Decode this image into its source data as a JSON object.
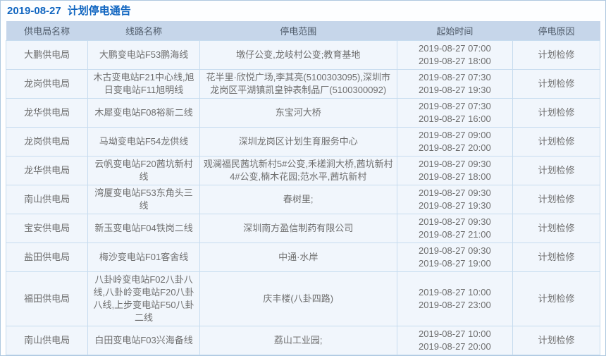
{
  "page": {
    "title_date": "2019-08-27",
    "title_text": "计划停电通告"
  },
  "colors": {
    "title": "#1065c0",
    "header_bg": "#c6d6ea",
    "row_bg": "#f1f6fc",
    "grid_border": "#c7dcef",
    "panel_border": "#aec8e0",
    "cell_text": "#6e6e6e"
  },
  "table": {
    "columns": [
      "供电局名称",
      "线路名称",
      "停电范围",
      "起始时间",
      "停电原因"
    ],
    "rows": [
      {
        "bureau": "大鹏供电局",
        "line": "大鹏变电站F53鹏海线",
        "scope": "墩仔公变,龙岐村公变;教育基地",
        "start": "2019-08-27 07:00",
        "end": "2019-08-27 18:00",
        "reason": "计划检修"
      },
      {
        "bureau": "龙岗供电局",
        "line": "木古变电站F21中心线,旭日变电站F11旭明线",
        "scope": "花半里·欣悦广场,李其亮(5100303095),深圳市龙岗区平湖镇凯皇钟表制品厂(5100300092)",
        "start": "2019-08-27 07:30",
        "end": "2019-08-27 19:30",
        "reason": "计划检修"
      },
      {
        "bureau": "龙华供电局",
        "line": "木犀变电站F08裕新二线",
        "scope": "东宝河大桥",
        "start": "2019-08-27 07:30",
        "end": "2019-08-27 16:00",
        "reason": "计划检修"
      },
      {
        "bureau": "龙岗供电局",
        "line": "马坳变电站F54龙供线",
        "scope": "深圳龙岗区计划生育服务中心",
        "start": "2019-08-27 09:00",
        "end": "2019-08-27 20:00",
        "reason": "计划检修"
      },
      {
        "bureau": "龙华供电局",
        "line": "云帆变电站F20茜坑新村线",
        "scope": "观澜福民茜坑新村5#公变,禾槎涧大桥,茜坑新村4#公变,楠木花园;范水平,茜坑新村",
        "start": "2019-08-27 09:30",
        "end": "2019-08-27 18:00",
        "reason": "计划检修"
      },
      {
        "bureau": "南山供电局",
        "line": "湾厦变电站F53东角头三线",
        "scope": "春树里;",
        "start": "2019-08-27 09:30",
        "end": "2019-08-27 19:30",
        "reason": "计划检修"
      },
      {
        "bureau": "宝安供电局",
        "line": "新玉变电站F04铁岗二线",
        "scope": "深圳南方盈信制药有限公司",
        "start": "2019-08-27 09:30",
        "end": "2019-08-27 21:00",
        "reason": "计划检修"
      },
      {
        "bureau": "盐田供电局",
        "line": "梅沙变电站F01客舍线",
        "scope": "中通·水岸",
        "start": "2019-08-27 09:30",
        "end": "2019-08-27 19:00",
        "reason": "计划检修"
      },
      {
        "bureau": "福田供电局",
        "line": "八卦岭变电站F02八卦八线,八卦岭变电站F20八卦八线,上步变电站F50八卦二线",
        "scope": "庆丰楼(八卦四路)",
        "start": "2019-08-27 10:00",
        "end": "2019-08-27 23:00",
        "reason": "计划检修"
      },
      {
        "bureau": "南山供电局",
        "line": "白田变电站F03兴海备线",
        "scope": "荔山工业园;",
        "start": "2019-08-27 10:00",
        "end": "2019-08-27 20:00",
        "reason": "计划检修"
      }
    ]
  }
}
